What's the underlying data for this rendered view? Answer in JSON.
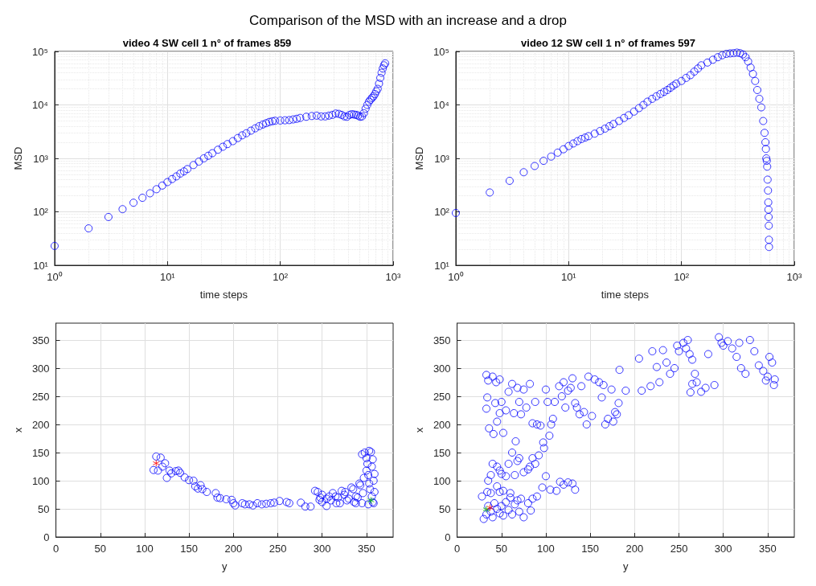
{
  "chart_data": [
    {
      "type": "other",
      "title": "Comparison of the MSD with an increase and a drop"
    },
    {
      "type": "scatter",
      "title": "video 4 SW cell 1 n° of frames 859",
      "xlabel": "time steps",
      "ylabel": "MSD",
      "log": "xy",
      "grid": true,
      "xlim": [
        1,
        1000
      ],
      "ylim": [
        10,
        100000
      ],
      "xticks": [
        {
          "value": 1,
          "label": "10⁰"
        },
        {
          "value": 10,
          "label": "10¹"
        },
        {
          "value": 100,
          "label": "10²"
        },
        {
          "value": 1000,
          "label": "10³"
        }
      ],
      "yticks": [
        {
          "value": 10,
          "label": "10¹"
        },
        {
          "value": 100,
          "label": "10²"
        },
        {
          "value": 1000,
          "label": "10³"
        },
        {
          "value": 10000,
          "label": "10⁴"
        },
        {
          "value": 100000,
          "label": "10⁵"
        }
      ],
      "series": [
        {
          "color": "#0000ff",
          "marker": "circle",
          "x": [
            1,
            2,
            3,
            4,
            5,
            6,
            7,
            8,
            9,
            10,
            11,
            12,
            13,
            14,
            15,
            17,
            19,
            21,
            23,
            25,
            28,
            31,
            34,
            38,
            42,
            46,
            50,
            55,
            60,
            65,
            70,
            75,
            80,
            85,
            90,
            100,
            110,
            120,
            130,
            140,
            150,
            170,
            190,
            210,
            230,
            250,
            270,
            290,
            310,
            330,
            350,
            370,
            390,
            410,
            430,
            450,
            470,
            490,
            510,
            530,
            550,
            570,
            590,
            610,
            630,
            650,
            670,
            690,
            710,
            730,
            750,
            770,
            790,
            810,
            830,
            850
          ],
          "values": [
            23,
            49,
            80,
            112,
            148,
            183,
            222,
            265,
            310,
            360,
            410,
            460,
            520,
            570,
            630,
            750,
            870,
            1000,
            1120,
            1250,
            1450,
            1650,
            1850,
            2100,
            2400,
            2700,
            2950,
            3300,
            3650,
            4000,
            4300,
            4550,
            4800,
            4950,
            5050,
            5100,
            5150,
            5200,
            5350,
            5500,
            5700,
            6000,
            6200,
            6300,
            6100,
            6100,
            6300,
            6500,
            6900,
            6800,
            6500,
            6100,
            6000,
            6500,
            6700,
            6600,
            6500,
            6300,
            6000,
            6100,
            7000,
            8500,
            10000,
            11500,
            12500,
            13500,
            14500,
            16000,
            18000,
            20000,
            25000,
            32000,
            40000,
            48000,
            55000,
            60000
          ]
        }
      ]
    },
    {
      "type": "scatter",
      "title": "video 12 SW cell 1 n° of frames 597",
      "xlabel": "time steps",
      "ylabel": "MSD",
      "log": "xy",
      "grid": true,
      "xlim": [
        1,
        1000
      ],
      "ylim": [
        10,
        100000
      ],
      "xticks": [
        {
          "value": 1,
          "label": "10⁰"
        },
        {
          "value": 10,
          "label": "10¹"
        },
        {
          "value": 100,
          "label": "10²"
        },
        {
          "value": 1000,
          "label": "10³"
        }
      ],
      "yticks": [
        {
          "value": 10,
          "label": "10¹"
        },
        {
          "value": 100,
          "label": "10²"
        },
        {
          "value": 1000,
          "label": "10³"
        },
        {
          "value": 10000,
          "label": "10⁴"
        },
        {
          "value": 100000,
          "label": "10⁵"
        }
      ],
      "series": [
        {
          "color": "#0000ff",
          "marker": "circle",
          "x": [
            1,
            2,
            3,
            4,
            5,
            6,
            7,
            8,
            9,
            10,
            11,
            12,
            13,
            14,
            15,
            17,
            19,
            21,
            23,
            25,
            28,
            31,
            34,
            38,
            42,
            46,
            50,
            55,
            60,
            65,
            70,
            75,
            80,
            85,
            90,
            100,
            110,
            120,
            130,
            140,
            150,
            170,
            190,
            210,
            230,
            250,
            270,
            290,
            310,
            330,
            350,
            370,
            390,
            410,
            430,
            450,
            470,
            490,
            510,
            530,
            545,
            555,
            560,
            565,
            570,
            575,
            580,
            585,
            588,
            590,
            592,
            594,
            596,
            597
          ],
          "values": [
            95,
            230,
            380,
            550,
            720,
            900,
            1080,
            1280,
            1480,
            1700,
            1900,
            2100,
            2300,
            2450,
            2600,
            2900,
            3250,
            3600,
            4000,
            4400,
            5000,
            5700,
            6400,
            7500,
            8700,
            10000,
            11500,
            13000,
            14500,
            16000,
            17500,
            19000,
            21000,
            23000,
            25000,
            28000,
            32000,
            36000,
            42000,
            48000,
            55000,
            62000,
            70000,
            78000,
            85000,
            90000,
            92000,
            93000,
            95000,
            93000,
            88000,
            78000,
            65000,
            50000,
            38000,
            28000,
            19000,
            13000,
            9000,
            5000,
            3000,
            2000,
            1500,
            1000,
            900,
            700,
            400,
            250,
            150,
            110,
            80,
            55,
            30,
            22
          ]
        }
      ]
    },
    {
      "type": "scatter",
      "xlabel": "y",
      "ylabel": "x",
      "grid": true,
      "xlim": [
        0,
        380
      ],
      "ylim": [
        0,
        380
      ],
      "xticks": [
        0,
        50,
        100,
        150,
        200,
        250,
        300,
        350
      ],
      "yticks": [
        0,
        50,
        100,
        150,
        200,
        250,
        300,
        350
      ],
      "series": [
        {
          "color": "#0000ff",
          "marker": "circle",
          "x": [
            113,
            118,
            110,
            115,
            120,
            123,
            125,
            128,
            130,
            135,
            138,
            140,
            145,
            150,
            155,
            157,
            160,
            163,
            165,
            170,
            180,
            182,
            185,
            192,
            198,
            200,
            202,
            210,
            213,
            218,
            222,
            227,
            232,
            237,
            242,
            246,
            252,
            260,
            263,
            276,
            281,
            287,
            292,
            295,
            298,
            300,
            305,
            310,
            315,
            320,
            325,
            330,
            335,
            338,
            342,
            345,
            348,
            350,
            352,
            353,
            355,
            356,
            357,
            358,
            359,
            358,
            352,
            345,
            340,
            300,
            305,
            312,
            318,
            322,
            328,
            333,
            338,
            343,
            347,
            350,
            353,
            356,
            359,
            297,
            308,
            316,
            326,
            336,
            346,
            351,
            354,
            357
          ],
          "values": [
            143,
            141,
            119,
            118,
            125,
            131,
            105,
            118,
            113,
            117,
            118,
            114,
            106,
            101,
            100,
            90,
            86,
            92,
            85,
            80,
            78,
            70,
            69,
            67,
            66,
            60,
            56,
            60,
            58,
            58,
            56,
            60,
            58,
            59,
            60,
            61,
            64,
            62,
            60,
            61,
            54,
            54,
            82,
            80,
            70,
            62,
            55,
            65,
            72,
            60,
            75,
            68,
            85,
            60,
            95,
            147,
            150,
            140,
            110,
            153,
            151,
            125,
            138,
            100,
            80,
            60,
            58,
            60,
            70,
            75,
            68,
            78,
            70,
            82,
            65,
            88,
            72,
            92,
            105,
            118,
            95,
            72,
            112,
            66,
            72,
            60,
            80,
            62,
            78,
            130,
            85,
            62
          ]
        },
        {
          "color": "#ff0000",
          "marker": "cross",
          "x": [
            113
          ],
          "values": [
            131
          ]
        },
        {
          "color": "#00c000",
          "marker": "cross",
          "x": [
            355
          ],
          "values": [
            65
          ]
        }
      ]
    },
    {
      "type": "scatter",
      "xlabel": "y",
      "ylabel": "x",
      "grid": true,
      "xlim": [
        0,
        380
      ],
      "ylim": [
        0,
        380
      ],
      "xticks": [
        0,
        50,
        100,
        150,
        200,
        250,
        300,
        350
      ],
      "yticks": [
        0,
        50,
        100,
        150,
        200,
        250,
        300,
        350
      ],
      "series": [
        {
          "color": "#0000ff",
          "marker": "circle",
          "x": [
            30,
            33,
            35,
            38,
            40,
            42,
            45,
            48,
            50,
            52,
            55,
            58,
            60,
            62,
            65,
            68,
            70,
            72,
            75,
            80,
            83,
            85,
            90,
            28,
            34,
            38,
            45,
            48,
            52,
            60,
            35,
            38,
            40,
            45,
            48,
            50,
            55,
            58,
            62,
            65,
            68,
            70,
            75,
            80,
            82,
            85,
            88,
            92,
            96,
            100,
            105,
            112,
            116,
            120,
            125,
            130,
            133,
            33,
            35,
            40,
            44,
            48,
            34,
            33,
            36,
            41,
            43,
            45,
            48,
            50,
            52,
            55,
            58,
            62,
            64,
            66,
            68,
            70,
            72,
            75,
            78,
            82,
            85,
            88,
            90,
            94,
            97,
            98,
            100,
            102,
            104,
            106,
            108,
            110,
            115,
            118,
            120,
            122,
            125,
            128,
            130,
            133,
            135,
            138,
            140,
            143,
            146,
            148,
            152,
            155,
            160,
            163,
            165,
            167,
            170,
            174,
            176,
            178,
            180,
            182,
            183,
            190,
            205,
            208,
            218,
            220,
            225,
            228,
            232,
            236,
            240,
            245,
            248,
            250,
            255,
            258,
            260,
            262,
            265,
            268,
            270,
            275,
            280,
            283,
            290,
            295,
            298,
            300,
            305,
            310,
            315,
            318,
            320,
            325,
            330,
            335,
            340,
            345,
            350,
            355,
            358,
            357,
            352,
            348,
            263,
            265
          ],
          "values": [
            32,
            40,
            55,
            45,
            35,
            60,
            50,
            42,
            55,
            38,
            62,
            48,
            70,
            40,
            58,
            65,
            45,
            68,
            35,
            60,
            47,
            68,
            72,
            72,
            80,
            78,
            90,
            80,
            82,
            78,
            100,
            110,
            130,
            125,
            118,
            112,
            108,
            130,
            150,
            110,
            135,
            140,
            115,
            120,
            125,
            140,
            130,
            145,
            88,
            108,
            84,
            82,
            98,
            93,
            97,
            95,
            84,
            288,
            278,
            285,
            275,
            280,
            248,
            228,
            193,
            183,
            238,
            205,
            220,
            240,
            185,
            225,
            258,
            272,
            220,
            170,
            265,
            240,
            218,
            262,
            230,
            272,
            202,
            240,
            200,
            198,
            168,
            158,
            262,
            240,
            180,
            200,
            210,
            240,
            268,
            250,
            275,
            230,
            260,
            265,
            282,
            238,
            230,
            218,
            268,
            222,
            200,
            285,
            215,
            280,
            275,
            248,
            270,
            200,
            210,
            262,
            205,
            222,
            218,
            238,
            297,
            260,
            317,
            260,
            268,
            330,
            302,
            275,
            332,
            310,
            290,
            300,
            340,
            330,
            345,
            335,
            350,
            325,
            315,
            290,
            275,
            258,
            265,
            325,
            270,
            355,
            345,
            340,
            348,
            335,
            320,
            345,
            300,
            290,
            350,
            330,
            305,
            295,
            285,
            310,
            280,
            270,
            320,
            278,
            257,
            272
          ]
        },
        {
          "color": "#00c000",
          "marker": "cross",
          "x": [
            33
          ],
          "values": [
            49
          ]
        },
        {
          "color": "#ff0000",
          "marker": "cross",
          "x": [
            37
          ],
          "values": [
            52
          ]
        }
      ]
    }
  ]
}
